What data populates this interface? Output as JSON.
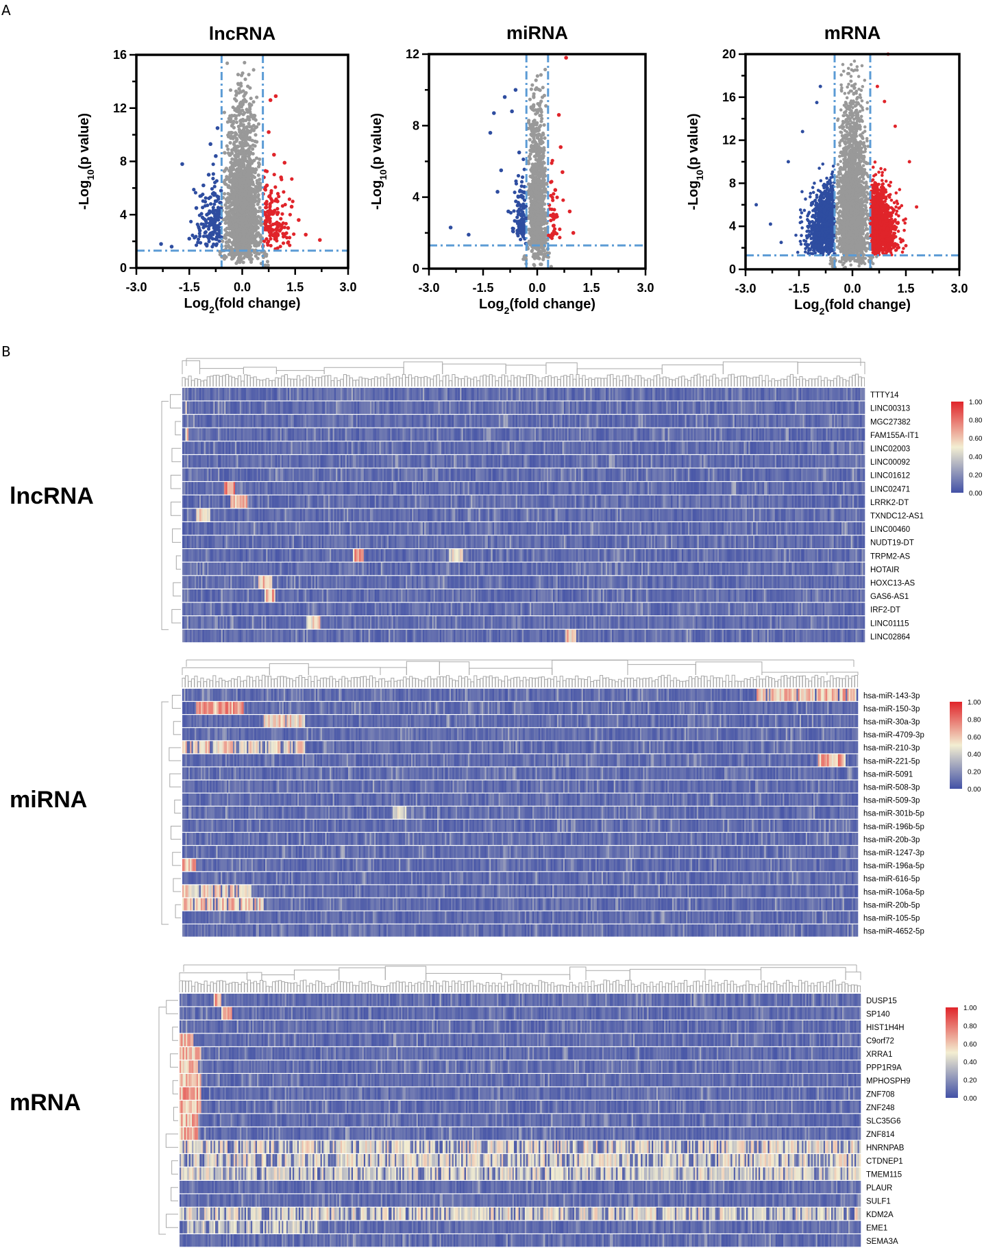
{
  "panels": {
    "a": "A",
    "b": "B"
  },
  "chart_data": [
    {
      "type": "scatter",
      "title": "lncRNA",
      "xlabel": "Log2(fold change)",
      "ylabel": "-Log10(p value)",
      "xlim": [
        -3.0,
        3.0
      ],
      "ylim": [
        0,
        16
      ],
      "xticks": [
        "-3.0",
        "-1.5",
        "0.0",
        "1.5",
        "3.0"
      ],
      "yticks": [
        "0",
        "4",
        "8",
        "12",
        "16"
      ],
      "fc_threshold": 0.585,
      "p_threshold_log": 1.3,
      "series": [
        {
          "name": "down",
          "color": "#2e4da0",
          "approx_points": 160,
          "sample": [
            [
              -1.7,
              7.8
            ],
            [
              -1.5,
              2.2
            ],
            [
              -2.0,
              1.6
            ],
            [
              -1.3,
              4.5
            ],
            [
              -0.9,
              9.3
            ],
            [
              -0.7,
              10.5
            ],
            [
              -1.1,
              6.2
            ],
            [
              -0.8,
              3.0
            ],
            [
              -0.6,
              5.8
            ],
            [
              -1.2,
              2.8
            ],
            [
              -2.3,
              1.8
            ],
            [
              -0.95,
              7.0
            ],
            [
              -0.75,
              8.4
            ],
            [
              -1.0,
              4.0
            ],
            [
              -0.65,
              2.6
            ]
          ]
        },
        {
          "name": "ns",
          "color": "#999999",
          "approx_points": 1800
        },
        {
          "name": "up",
          "color": "#e0242a",
          "approx_points": 150,
          "sample": [
            [
              0.8,
              12.6
            ],
            [
              0.95,
              12.9
            ],
            [
              0.75,
              10.2
            ],
            [
              1.4,
              4.6
            ],
            [
              1.6,
              3.6
            ],
            [
              2.2,
              2.1
            ],
            [
              1.2,
              7.9
            ],
            [
              0.7,
              6.2
            ],
            [
              1.0,
              5.0
            ],
            [
              1.3,
              3.0
            ],
            [
              0.65,
              3.4
            ],
            [
              1.8,
              2.5
            ],
            [
              0.9,
              8.5
            ],
            [
              1.1,
              6.8
            ]
          ]
        }
      ]
    },
    {
      "type": "scatter",
      "title": "miRNA",
      "xlabel": "Log2(fold change)",
      "ylabel": "-Log10(p value)",
      "xlim": [
        -3.0,
        3.0
      ],
      "ylim": [
        0,
        12
      ],
      "xticks": [
        "-3.0",
        "-1.5",
        "0.0",
        "1.5",
        "3.0"
      ],
      "yticks": [
        "0",
        "4",
        "8",
        "12"
      ],
      "fc_threshold": 0.3,
      "p_threshold_log": 1.3,
      "series": [
        {
          "name": "down",
          "color": "#2e4da0",
          "approx_points": 110,
          "sample": [
            [
              -1.2,
              8.7
            ],
            [
              -0.9,
              9.6
            ],
            [
              -0.7,
              8.8
            ],
            [
              -0.6,
              10.0
            ],
            [
              -2.4,
              2.3
            ],
            [
              -1.9,
              1.9
            ],
            [
              -1.0,
              5.5
            ],
            [
              -0.8,
              3.2
            ],
            [
              -0.5,
              6.5
            ],
            [
              -1.1,
              4.3
            ],
            [
              -0.45,
              2.0
            ],
            [
              -1.3,
              7.6
            ]
          ]
        },
        {
          "name": "ns",
          "color": "#999999",
          "approx_points": 900
        },
        {
          "name": "up",
          "color": "#e0242a",
          "approx_points": 40,
          "sample": [
            [
              0.8,
              11.8
            ],
            [
              0.6,
              8.6
            ],
            [
              0.7,
              5.4
            ],
            [
              0.9,
              3.2
            ],
            [
              0.5,
              4.4
            ],
            [
              0.45,
              2.4
            ],
            [
              1.0,
              2.0
            ],
            [
              0.65,
              6.8
            ]
          ]
        }
      ]
    },
    {
      "type": "scatter",
      "title": "mRNA",
      "xlabel": "Log2(fold change)",
      "ylabel": "-Log10(p value)",
      "xlim": [
        -3.0,
        3.0
      ],
      "ylim": [
        0,
        20
      ],
      "xticks": [
        "-3.0",
        "-1.5",
        "0.0",
        "1.5",
        "3.0"
      ],
      "yticks": [
        "0",
        "4",
        "8",
        "12",
        "16",
        "20"
      ],
      "fc_threshold": 0.5,
      "p_threshold_log": 1.3,
      "series": [
        {
          "name": "down",
          "color": "#2e4da0",
          "approx_points": 2500,
          "sample": [
            [
              -2.7,
              6.0
            ],
            [
              -2.3,
              4.2
            ],
            [
              -1.8,
              10.0
            ],
            [
              -1.4,
              12.8
            ],
            [
              -1.0,
              15.5
            ],
            [
              -0.9,
              17.0
            ],
            [
              -2.0,
              2.5
            ]
          ]
        },
        {
          "name": "ns",
          "color": "#999999",
          "approx_points": 9000
        },
        {
          "name": "up",
          "color": "#e0242a",
          "approx_points": 2500,
          "sample": [
            [
              0.7,
              17.0
            ],
            [
              0.9,
              15.6
            ],
            [
              1.2,
              13.3
            ],
            [
              1.6,
              10.0
            ],
            [
              1.8,
              5.8
            ],
            [
              1.5,
              2.2
            ],
            [
              1.0,
              20.0
            ]
          ]
        }
      ]
    },
    {
      "type": "heatmap",
      "side_label": "lncRNA",
      "rows": [
        "TTTY14",
        "LINC00313",
        "MGC27382",
        "FAM155A-IT1",
        "LINC02003",
        "LINC00092",
        "LINC01612",
        "LINC02471",
        "LRRK2-DT",
        "TXNDC12-AS1",
        "LINC00460",
        "NUDT19-DT",
        "TRPM2-AS",
        "HOTAIR",
        "HOXC13-AS",
        "GAS6-AS1",
        "IRF2-DT",
        "LINC01115",
        "LINC02864"
      ],
      "value_range": [
        0,
        1
      ],
      "colorbar_ticks": [
        "1.00",
        "0.80",
        "0.60",
        "0.40",
        "0.20",
        "0.00"
      ],
      "colors": {
        "low": "#4251a6",
        "mid": "#f3eed2",
        "high": "#e0242a"
      }
    },
    {
      "type": "heatmap",
      "side_label": "miRNA",
      "rows": [
        "hsa-miR-143-3p",
        "hsa-miR-150-3p",
        "hsa-miR-30a-3p",
        "hsa-miR-4709-3p",
        "hsa-miR-210-3p",
        "hsa-miR-221-5p",
        "hsa-miR-5091",
        "hsa-miR-508-3p",
        "hsa-miR-509-3p",
        "hsa-miR-301b-5p",
        "hsa-miR-196b-5p",
        "hsa-miR-20b-3p",
        "hsa-miR-1247-3p",
        "hsa-miR-196a-5p",
        "hsa-miR-616-5p",
        "hsa-miR-106a-5p",
        "hsa-miR-20b-5p",
        "hsa-miR-105-5p",
        "hsa-miR-4652-5p"
      ],
      "value_range": [
        0,
        1
      ],
      "colorbar_ticks": [
        "1.00",
        "0.80",
        "0.60",
        "0.40",
        "0.20",
        "0.00"
      ],
      "colors": {
        "low": "#4251a6",
        "mid": "#f3eed2",
        "high": "#e0242a"
      }
    },
    {
      "type": "heatmap",
      "side_label": "mRNA",
      "rows": [
        "DUSP15",
        "SP140",
        "HIST1H4H",
        "C9orf72",
        "XRRA1",
        "PPP1R9A",
        "MPHOSPH9",
        "ZNF708",
        "ZNF248",
        "SLC35G6",
        "ZNF814",
        "HNRNPAB",
        "CTDNEP1",
        "TMEM115",
        "PLAUR",
        "SULF1",
        "KDM2A",
        "EME1",
        "SEMA3A"
      ],
      "value_range": [
        0,
        1
      ],
      "colorbar_ticks": [
        "1.00",
        "0.80",
        "0.60",
        "0.40",
        "0.20",
        "0.00"
      ],
      "colors": {
        "low": "#4251a6",
        "mid": "#f3eed2",
        "high": "#e0242a"
      }
    }
  ]
}
